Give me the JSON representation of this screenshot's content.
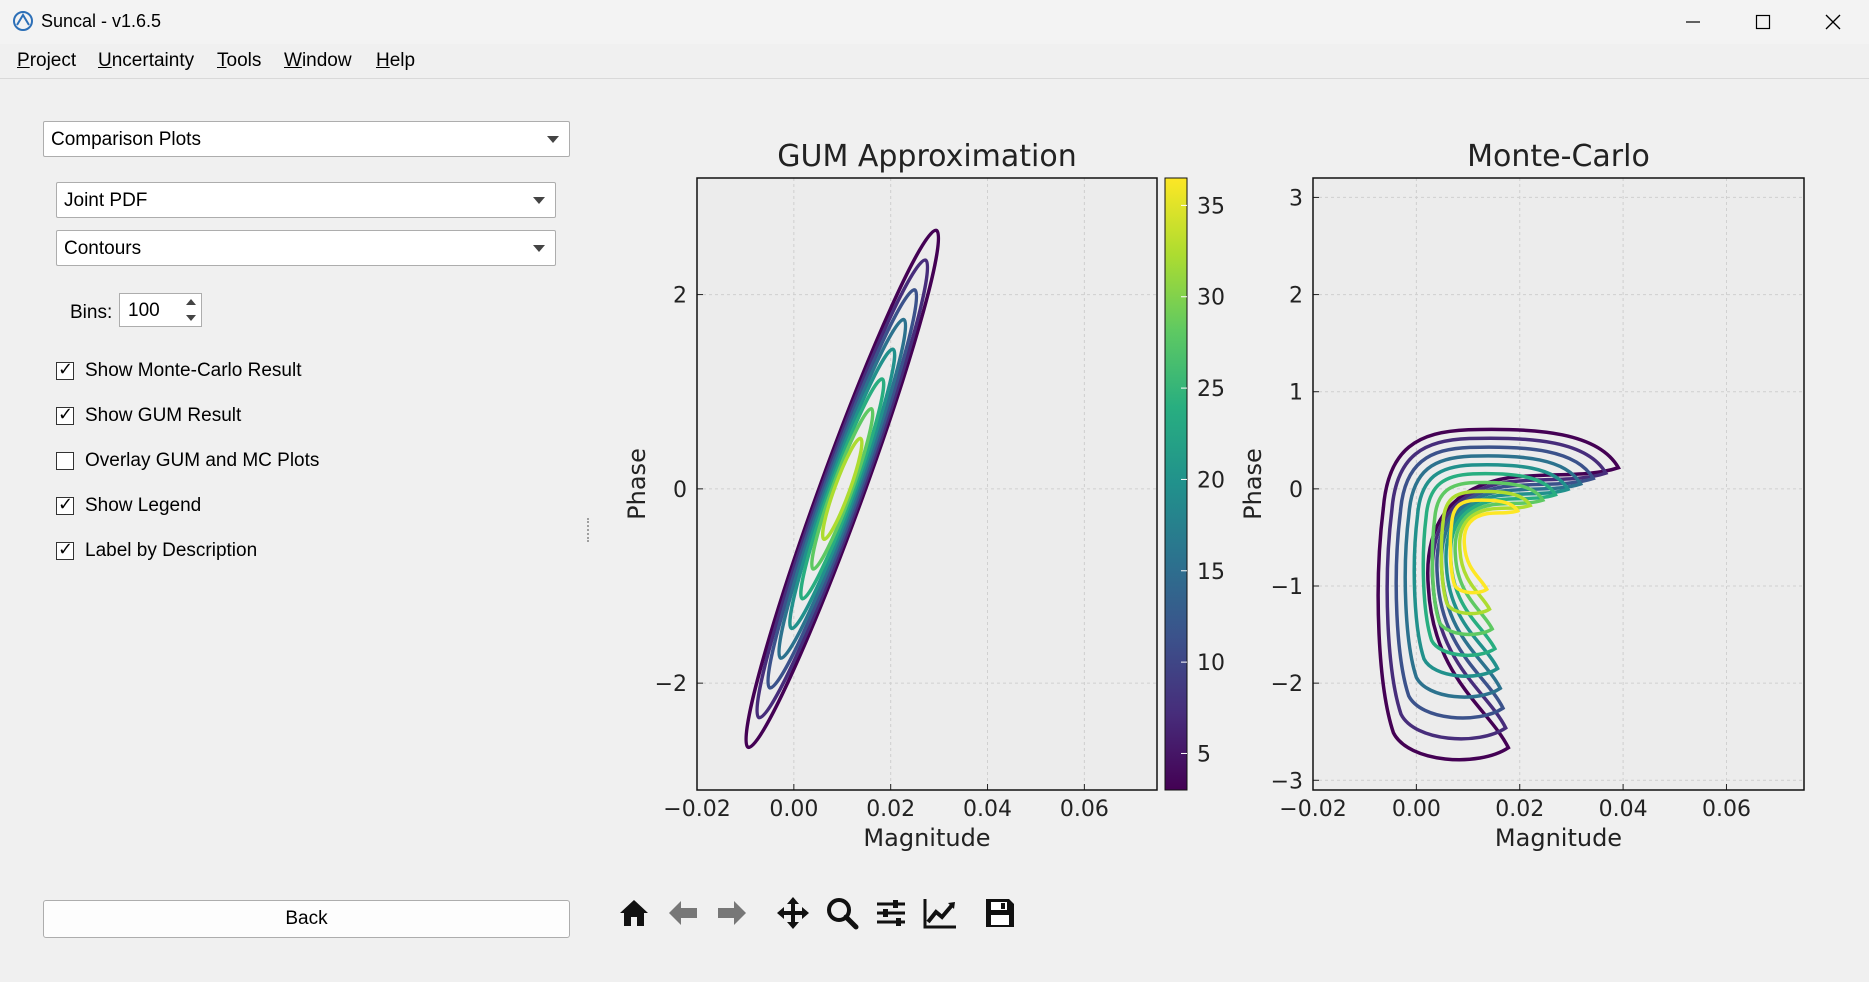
{
  "window": {
    "title": "Suncal - v1.6.5",
    "minimize_symbol": "—",
    "maximize_symbol": "☐",
    "close_symbol": "✕"
  },
  "menu": [
    {
      "u": "P",
      "rest": "roject"
    },
    {
      "u": "U",
      "rest": "ncertainty"
    },
    {
      "u": "T",
      "rest": "ools"
    },
    {
      "u": "W",
      "rest": "indow"
    },
    {
      "u": "H",
      "rest": "elp"
    }
  ],
  "panel": {
    "view_select": "Comparison Plots",
    "plot_type_select": "Joint PDF",
    "style_select": "Contours",
    "bins_label": "Bins:",
    "bins_value": "100",
    "checkboxes": [
      {
        "label": "Show Monte-Carlo Result",
        "checked": true
      },
      {
        "label": "Show GUM Result",
        "checked": true
      },
      {
        "label": "Overlay GUM and MC Plots",
        "checked": false
      },
      {
        "label": "Show Legend",
        "checked": true
      },
      {
        "label": "Label by Description",
        "checked": true
      }
    ],
    "back_button": "Back"
  },
  "toolbar": {
    "icons": [
      "home-icon",
      "back-arrow-icon",
      "forward-arrow-icon",
      "pan-icon",
      "zoom-icon",
      "configure-subplots-icon",
      "edit-axis-icon",
      "save-icon"
    ]
  },
  "chart_data": [
    {
      "type": "contour",
      "title": "GUM Approximation",
      "xlabel": "Magnitude",
      "ylabel": "Phase",
      "xlim": [
        -0.02,
        0.075
      ],
      "ylim": [
        -3.1,
        3.2
      ],
      "x_ticks": [
        "−0.02",
        "0.00",
        "0.02",
        "0.04",
        "0.06"
      ],
      "y_ticks": [
        "2",
        "0",
        "−2"
      ],
      "grid": true,
      "colorbar": {
        "ticks": [
          "35",
          "30",
          "25",
          "20",
          "15",
          "10",
          "5"
        ],
        "range": [
          3,
          36.5
        ]
      },
      "center": [
        0.01,
        0.0
      ],
      "levels": [
        4,
        8,
        12,
        16,
        20,
        24,
        28,
        32
      ],
      "outer_contour_extent": {
        "x": [
          -0.011,
          0.031
        ],
        "y": [
          -2.15,
          2.15
        ]
      }
    },
    {
      "type": "contour",
      "title": "Monte-Carlo",
      "xlabel": "Magnitude",
      "ylabel": "Phase",
      "xlim": [
        -0.02,
        0.075
      ],
      "ylim": [
        -3.1,
        3.2
      ],
      "x_ticks": [
        "−0.02",
        "0.00",
        "0.02",
        "0.04",
        "0.06"
      ],
      "y_ticks": [
        "3",
        "2",
        "1",
        "0",
        "−1",
        "−2",
        "−3"
      ],
      "grid": true,
      "outer_contour_extent": {
        "x": [
          0.002,
          0.043
        ],
        "y": [
          -2.3,
          0.85
        ]
      }
    }
  ],
  "colors": {
    "viridis": [
      "#440154",
      "#472d7b",
      "#3b528b",
      "#2c728e",
      "#21918c",
      "#28ae80",
      "#5ec962",
      "#addc30",
      "#fde725"
    ],
    "plot_bg": "#ececec",
    "grid": "#cfcfcf"
  }
}
